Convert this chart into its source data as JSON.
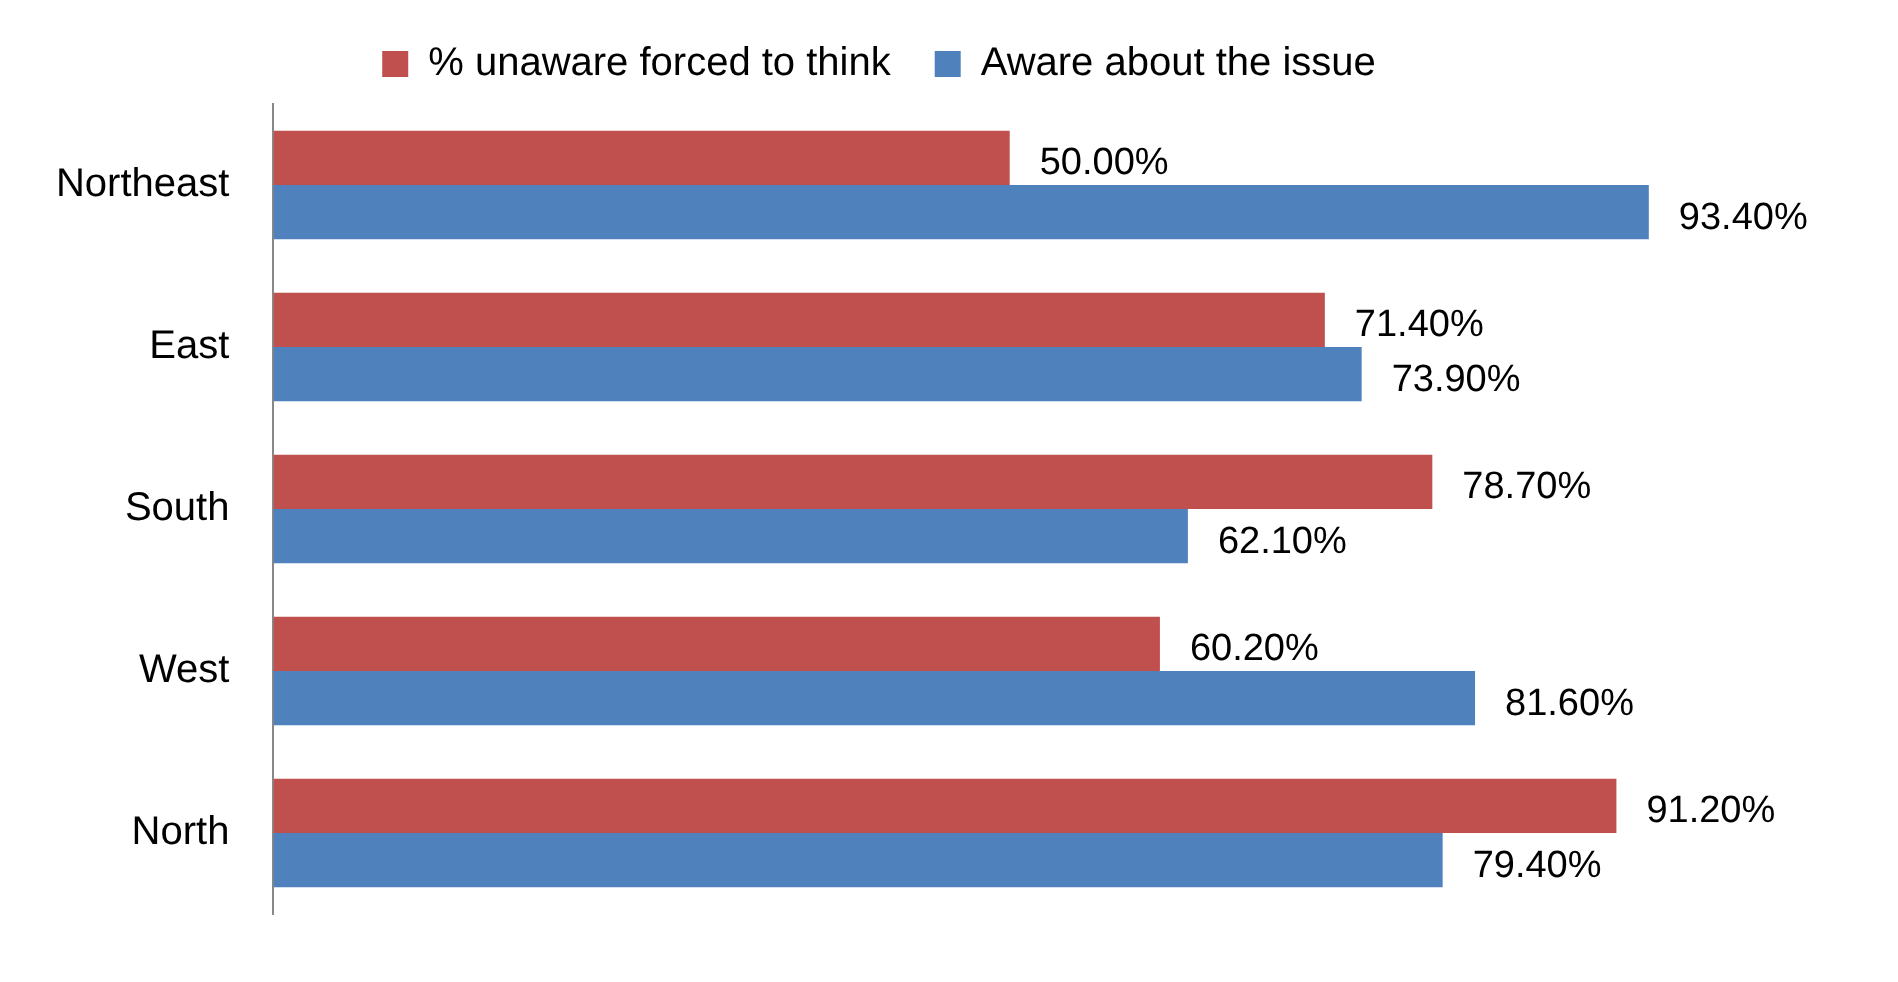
{
  "chart_data": {
    "type": "bar",
    "orientation": "horizontal",
    "categories": [
      "Northeast",
      "East",
      "South",
      "West",
      "North"
    ],
    "series": [
      {
        "name": "% unaware forced to think",
        "color": "#c0504d",
        "values": [
          50.0,
          71.4,
          78.7,
          60.2,
          91.2
        ],
        "value_labels": [
          "50.00%",
          "71.40%",
          "78.70%",
          "60.20%",
          "91.20%"
        ]
      },
      {
        "name": "Aware about the issue",
        "color": "#4f81bd",
        "values": [
          93.4,
          73.9,
          62.1,
          81.6,
          79.4
        ],
        "value_labels": [
          "93.40%",
          "73.90%",
          "62.10%",
          "81.60%",
          "79.40%"
        ]
      }
    ],
    "legend": "top",
    "grid": false
  }
}
